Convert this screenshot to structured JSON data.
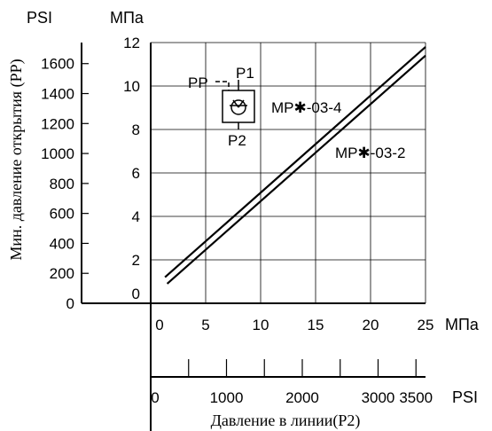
{
  "chart_data": {
    "type": "line",
    "xlabel": "Давление в линии(P2)",
    "ylabel": "Мин. давление открытия (PP)",
    "x_unit_mpa": "МПа",
    "x_unit_psi": "PSI",
    "y_unit_mpa": "МПа",
    "y_unit_psi": "PSI",
    "xlim_mpa": [
      0,
      25
    ],
    "ylim_mpa": [
      0,
      12
    ],
    "x_ticks_mpa": [
      "0",
      "5",
      "10",
      "15",
      "20",
      "25"
    ],
    "y_ticks_mpa": [
      "0",
      "2",
      "4",
      "6",
      "8",
      "10",
      "12"
    ],
    "x_ticks_psi": [
      "0",
      "1000",
      "2000",
      "3000",
      "3500"
    ],
    "y_ticks_psi": [
      "0",
      "200",
      "400",
      "600",
      "800",
      "1000",
      "1200",
      "1400",
      "1600"
    ],
    "grid": true,
    "series": [
      {
        "name": "MP✱-03-4",
        "x": [
          1.3,
          25
        ],
        "y": [
          1.2,
          11.8
        ]
      },
      {
        "name": "MP✱-03-2",
        "x": [
          1.5,
          25
        ],
        "y": [
          0.9,
          11.4
        ]
      }
    ],
    "symbol": {
      "pp_label": "PP",
      "p1_label": "P1",
      "p2_label": "P2"
    }
  }
}
